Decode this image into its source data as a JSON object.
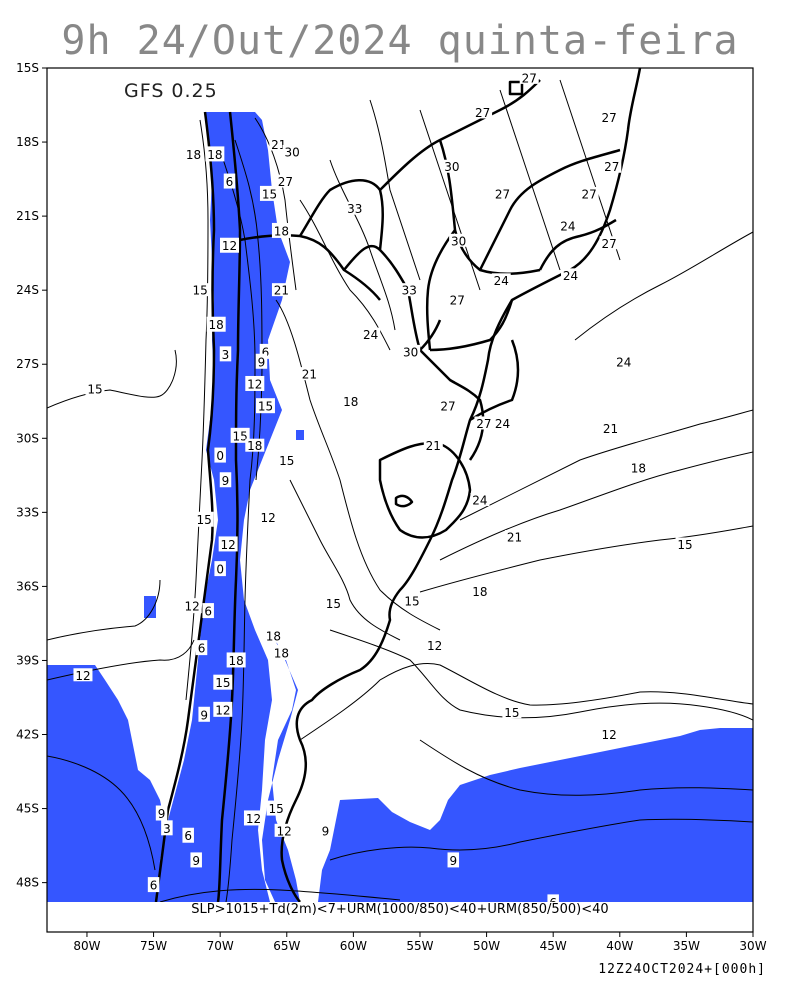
{
  "title": "9h 24/Out/2024 quinta-feira",
  "model_label": "GFS 0.25",
  "condition": "SLP>1015+Td(2m)<7+URM(1000/850)<40+URM(850/500)<40",
  "run_stamp": "12Z24OCT2024+[000h]",
  "colors": {
    "mask": "#3556ff",
    "background": "#ffffff",
    "lines": "#000000"
  },
  "map": {
    "lon_range": [
      -83,
      -30
    ],
    "lat_range": [
      -50,
      -15
    ],
    "lon_ticks": [
      {
        "value": -80,
        "label": "80W"
      },
      {
        "value": -75,
        "label": "75W"
      },
      {
        "value": -70,
        "label": "70W"
      },
      {
        "value": -65,
        "label": "65W"
      },
      {
        "value": -60,
        "label": "60W"
      },
      {
        "value": -55,
        "label": "55W"
      },
      {
        "value": -50,
        "label": "50W"
      },
      {
        "value": -45,
        "label": "45W"
      },
      {
        "value": -40,
        "label": "40W"
      },
      {
        "value": -35,
        "label": "35W"
      },
      {
        "value": -30,
        "label": "30W"
      }
    ],
    "lat_ticks": [
      {
        "value": -15,
        "label": "15S"
      },
      {
        "value": -18,
        "label": "18S"
      },
      {
        "value": -21,
        "label": "21S"
      },
      {
        "value": -24,
        "label": "24S"
      },
      {
        "value": -27,
        "label": "27S"
      },
      {
        "value": -30,
        "label": "30S"
      },
      {
        "value": -33,
        "label": "33S"
      },
      {
        "value": -36,
        "label": "36S"
      },
      {
        "value": -39,
        "label": "39S"
      },
      {
        "value": -42,
        "label": "42S"
      },
      {
        "value": -45,
        "label": "45S"
      },
      {
        "value": -48,
        "label": "48S"
      }
    ],
    "contour_labels": [
      {
        "text": "27",
        "lon": -46.8,
        "lat": -15.4,
        "boxed": false
      },
      {
        "text": "27",
        "lon": -50.3,
        "lat": -16.8,
        "boxed": false
      },
      {
        "text": "27",
        "lon": -40.8,
        "lat": -17.0,
        "boxed": false
      },
      {
        "text": "21",
        "lon": -65.6,
        "lat": -18.1,
        "boxed": false
      },
      {
        "text": "30",
        "lon": -64.6,
        "lat": -18.4,
        "boxed": false
      },
      {
        "text": "18",
        "lon": -72.0,
        "lat": -18.5,
        "boxed": false
      },
      {
        "text": "18",
        "lon": -70.4,
        "lat": -18.5,
        "boxed": true
      },
      {
        "text": "30",
        "lon": -52.6,
        "lat": -19.0,
        "boxed": false
      },
      {
        "text": "27",
        "lon": -40.6,
        "lat": -19.0,
        "boxed": false
      },
      {
        "text": "6",
        "lon": -69.3,
        "lat": -19.6,
        "boxed": true
      },
      {
        "text": "27",
        "lon": -65.1,
        "lat": -19.6,
        "boxed": false
      },
      {
        "text": "15",
        "lon": -66.3,
        "lat": -20.1,
        "boxed": true
      },
      {
        "text": "27",
        "lon": -48.8,
        "lat": -20.1,
        "boxed": false
      },
      {
        "text": "27",
        "lon": -42.3,
        "lat": -20.1,
        "boxed": false
      },
      {
        "text": "33",
        "lon": -59.9,
        "lat": -20.7,
        "boxed": false
      },
      {
        "text": "18",
        "lon": -65.4,
        "lat": -21.6,
        "boxed": true
      },
      {
        "text": "24",
        "lon": -43.9,
        "lat": -21.4,
        "boxed": false
      },
      {
        "text": "12",
        "lon": -69.3,
        "lat": -22.2,
        "boxed": true
      },
      {
        "text": "30",
        "lon": -52.1,
        "lat": -22.0,
        "boxed": false
      },
      {
        "text": "27",
        "lon": -40.8,
        "lat": -22.1,
        "boxed": false
      },
      {
        "text": "24",
        "lon": -48.9,
        "lat": -23.6,
        "boxed": false
      },
      {
        "text": "24",
        "lon": -43.7,
        "lat": -23.4,
        "boxed": false
      },
      {
        "text": "21",
        "lon": -65.4,
        "lat": -24.0,
        "boxed": false
      },
      {
        "text": "15",
        "lon": -71.5,
        "lat": -24.0,
        "boxed": false
      },
      {
        "text": "33",
        "lon": -55.8,
        "lat": -24.0,
        "boxed": false
      },
      {
        "text": "27",
        "lon": -52.2,
        "lat": -24.4,
        "boxed": false
      },
      {
        "text": "18",
        "lon": -70.3,
        "lat": -25.4,
        "boxed": true
      },
      {
        "text": "24",
        "lon": -58.7,
        "lat": -25.8,
        "boxed": false
      },
      {
        "text": "3",
        "lon": -69.6,
        "lat": -26.6,
        "boxed": true
      },
      {
        "text": "6",
        "lon": -66.6,
        "lat": -26.5,
        "boxed": true
      },
      {
        "text": "30",
        "lon": -55.7,
        "lat": -26.5,
        "boxed": false
      },
      {
        "text": "9",
        "lon": -66.9,
        "lat": -26.9,
        "boxed": true
      },
      {
        "text": "24",
        "lon": -39.7,
        "lat": -26.9,
        "boxed": false
      },
      {
        "text": "15",
        "lon": -79.4,
        "lat": -28.0,
        "boxed": false
      },
      {
        "text": "21",
        "lon": -63.3,
        "lat": -27.4,
        "boxed": false
      },
      {
        "text": "12",
        "lon": -67.4,
        "lat": -27.8,
        "boxed": true
      },
      {
        "text": "18",
        "lon": -60.2,
        "lat": -28.5,
        "boxed": false
      },
      {
        "text": "15",
        "lon": -66.6,
        "lat": -28.7,
        "boxed": true
      },
      {
        "text": "27",
        "lon": -52.9,
        "lat": -28.7,
        "boxed": false
      },
      {
        "text": "27",
        "lon": -50.2,
        "lat": -29.4,
        "boxed": false
      },
      {
        "text": "24",
        "lon": -48.8,
        "lat": -29.4,
        "boxed": false
      },
      {
        "text": "21",
        "lon": -40.7,
        "lat": -29.6,
        "boxed": false
      },
      {
        "text": "15",
        "lon": -68.5,
        "lat": -29.9,
        "boxed": true
      },
      {
        "text": "18",
        "lon": -67.4,
        "lat": -30.3,
        "boxed": false
      },
      {
        "text": "21",
        "lon": -54.0,
        "lat": -30.3,
        "boxed": false
      },
      {
        "text": "0",
        "lon": -70.0,
        "lat": -30.7,
        "boxed": true
      },
      {
        "text": "15",
        "lon": -65.0,
        "lat": -30.9,
        "boxed": false
      },
      {
        "text": "18",
        "lon": -38.6,
        "lat": -31.2,
        "boxed": false
      },
      {
        "text": "9",
        "lon": -69.6,
        "lat": -31.7,
        "boxed": true
      },
      {
        "text": "24",
        "lon": -50.5,
        "lat": -32.5,
        "boxed": false
      },
      {
        "text": "15",
        "lon": -71.2,
        "lat": -33.3,
        "boxed": true
      },
      {
        "text": "12",
        "lon": -66.4,
        "lat": -33.2,
        "boxed": false
      },
      {
        "text": "21",
        "lon": -47.9,
        "lat": -34.0,
        "boxed": false
      },
      {
        "text": "15",
        "lon": -35.1,
        "lat": -34.3,
        "boxed": false
      },
      {
        "text": "12",
        "lon": -69.4,
        "lat": -34.3,
        "boxed": true
      },
      {
        "text": "0",
        "lon": -70.0,
        "lat": -35.3,
        "boxed": true
      },
      {
        "text": "18",
        "lon": -50.5,
        "lat": -36.2,
        "boxed": false
      },
      {
        "text": "15",
        "lon": -55.6,
        "lat": -36.6,
        "boxed": false
      },
      {
        "text": "15",
        "lon": -61.5,
        "lat": -36.7,
        "boxed": false
      },
      {
        "text": "12",
        "lon": -72.1,
        "lat": -36.8,
        "boxed": true
      },
      {
        "text": "6",
        "lon": -70.9,
        "lat": -37.0,
        "boxed": true
      },
      {
        "text": "18",
        "lon": -66.0,
        "lat": -38.0,
        "boxed": true
      },
      {
        "text": "12",
        "lon": -53.9,
        "lat": -38.4,
        "boxed": false
      },
      {
        "text": "6",
        "lon": -71.4,
        "lat": -38.5,
        "boxed": true
      },
      {
        "text": "18",
        "lon": -65.4,
        "lat": -38.7,
        "boxed": true
      },
      {
        "text": "18",
        "lon": -68.8,
        "lat": -39.0,
        "boxed": true
      },
      {
        "text": "12",
        "lon": -80.3,
        "lat": -39.6,
        "boxed": false
      },
      {
        "text": "15",
        "lon": -69.8,
        "lat": -39.9,
        "boxed": true
      },
      {
        "text": "12",
        "lon": -69.8,
        "lat": -41.0,
        "boxed": true
      },
      {
        "text": "9",
        "lon": -71.2,
        "lat": -41.2,
        "boxed": true
      },
      {
        "text": "15",
        "lon": -48.1,
        "lat": -41.1,
        "boxed": false
      },
      {
        "text": "12",
        "lon": -40.8,
        "lat": -42.0,
        "boxed": false
      },
      {
        "text": "9",
        "lon": -74.4,
        "lat": -45.2,
        "boxed": true
      },
      {
        "text": "15",
        "lon": -65.8,
        "lat": -45.0,
        "boxed": true
      },
      {
        "text": "12",
        "lon": -67.5,
        "lat": -45.4,
        "boxed": true
      },
      {
        "text": "3",
        "lon": -74.0,
        "lat": -45.8,
        "boxed": true
      },
      {
        "text": "12",
        "lon": -65.2,
        "lat": -45.9,
        "boxed": false
      },
      {
        "text": "9",
        "lon": -62.1,
        "lat": -45.9,
        "boxed": true
      },
      {
        "text": "6",
        "lon": -72.4,
        "lat": -46.1,
        "boxed": true
      },
      {
        "text": "9",
        "lon": -71.8,
        "lat": -47.1,
        "boxed": true
      },
      {
        "text": "9",
        "lon": -52.5,
        "lat": -47.1,
        "boxed": true
      },
      {
        "text": "6",
        "lon": -75.0,
        "lat": -48.1,
        "boxed": true
      },
      {
        "text": "6",
        "lon": -45.0,
        "lat": -48.8,
        "boxed": true
      }
    ]
  }
}
